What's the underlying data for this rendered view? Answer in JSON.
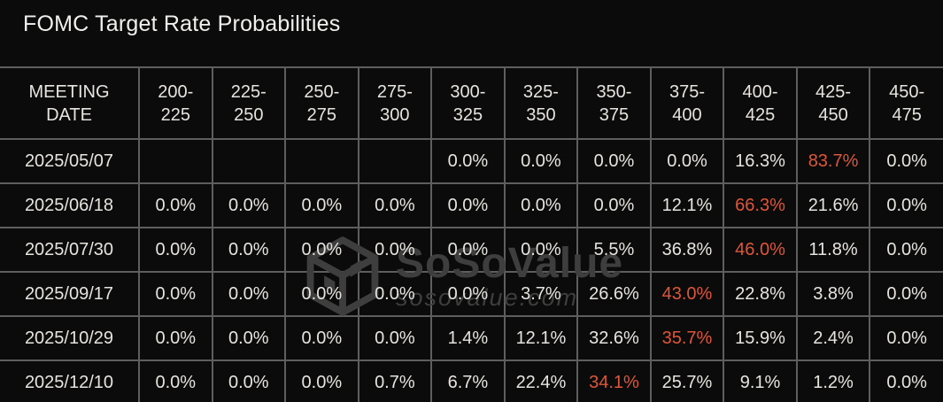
{
  "title": "FOMC Target Rate Probabilities",
  "colors": {
    "background": "#0b0b0b",
    "grid": "#5e5e5e",
    "text": "#e7e4e0",
    "title_text": "#f2f0ee",
    "highlight": "#de5639",
    "watermark": "#3e3e3e"
  },
  "watermark": {
    "brand": "SoSoValue",
    "domain": "sosovalue.com",
    "logo_icon": "sosovalue-cube-logo"
  },
  "chart_data": {
    "type": "table",
    "title": "FOMC Target Rate Probabilities",
    "columns": [
      {
        "label": "MEETING DATE",
        "line1": "MEETING",
        "line2": "DATE"
      },
      {
        "label": "200-225",
        "line1": "200-",
        "line2": "225"
      },
      {
        "label": "225-250",
        "line1": "225-",
        "line2": "250"
      },
      {
        "label": "250-275",
        "line1": "250-",
        "line2": "275"
      },
      {
        "label": "275-300",
        "line1": "275-",
        "line2": "300"
      },
      {
        "label": "300-325",
        "line1": "300-",
        "line2": "325"
      },
      {
        "label": "325-350",
        "line1": "325-",
        "line2": "350"
      },
      {
        "label": "350-375",
        "line1": "350-",
        "line2": "375"
      },
      {
        "label": "375-400",
        "line1": "375-",
        "line2": "400"
      },
      {
        "label": "400-425",
        "line1": "400-",
        "line2": "425"
      },
      {
        "label": "425-450",
        "line1": "425-",
        "line2": "450"
      },
      {
        "label": "450-475",
        "line1": "450-",
        "line2": "475"
      }
    ],
    "rows": [
      {
        "meeting_date": "2025/05/07",
        "values": [
          "",
          "",
          "",
          "",
          "0.0%",
          "0.0%",
          "0.0%",
          "0.0%",
          "16.3%",
          "83.7%",
          "0.0%"
        ],
        "highlight_index": 9,
        "highlight_column": "425-450",
        "highlight_value": "83.7%"
      },
      {
        "meeting_date": "2025/06/18",
        "values": [
          "0.0%",
          "0.0%",
          "0.0%",
          "0.0%",
          "0.0%",
          "0.0%",
          "0.0%",
          "12.1%",
          "66.3%",
          "21.6%",
          "0.0%"
        ],
        "highlight_index": 8,
        "highlight_column": "400-425",
        "highlight_value": "66.3%"
      },
      {
        "meeting_date": "2025/07/30",
        "values": [
          "0.0%",
          "0.0%",
          "0.0%",
          "0.0%",
          "0.0%",
          "0.0%",
          "5.5%",
          "36.8%",
          "46.0%",
          "11.8%",
          "0.0%"
        ],
        "highlight_index": 8,
        "highlight_column": "400-425",
        "highlight_value": "46.0%"
      },
      {
        "meeting_date": "2025/09/17",
        "values": [
          "0.0%",
          "0.0%",
          "0.0%",
          "0.0%",
          "0.0%",
          "3.7%",
          "26.6%",
          "43.0%",
          "22.8%",
          "3.8%",
          "0.0%"
        ],
        "highlight_index": 7,
        "highlight_column": "375-400",
        "highlight_value": "43.0%"
      },
      {
        "meeting_date": "2025/10/29",
        "values": [
          "0.0%",
          "0.0%",
          "0.0%",
          "0.0%",
          "1.4%",
          "12.1%",
          "32.6%",
          "35.7%",
          "15.9%",
          "2.4%",
          "0.0%"
        ],
        "highlight_index": 7,
        "highlight_column": "375-400",
        "highlight_value": "35.7%"
      },
      {
        "meeting_date": "2025/12/10",
        "values": [
          "0.0%",
          "0.0%",
          "0.0%",
          "0.7%",
          "6.7%",
          "22.4%",
          "34.1%",
          "25.7%",
          "9.1%",
          "1.2%",
          "0.0%"
        ],
        "highlight_index": 6,
        "highlight_column": "350-375",
        "highlight_value": "34.1%"
      }
    ]
  }
}
